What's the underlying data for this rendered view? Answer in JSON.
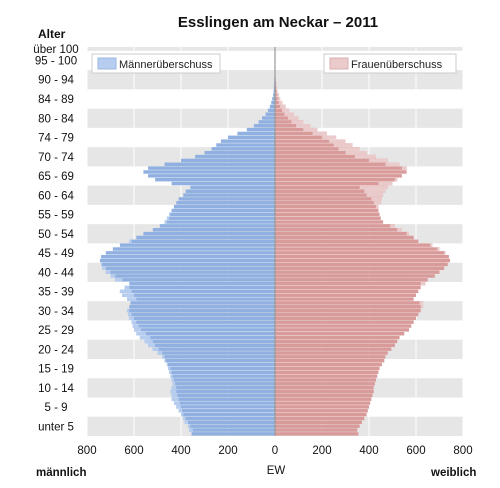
{
  "chart_data": {
    "type": "bar",
    "title": "Esslingen am Neckar – 2011",
    "age_axis_label": "Alter",
    "xlabel": "EW",
    "left_label": "männlich",
    "right_label": "weiblich",
    "xlim": [
      -800,
      800
    ],
    "x_ticks": [
      "800",
      "600",
      "400",
      "200",
      "0",
      "200",
      "400",
      "600",
      "800"
    ],
    "age_tick_labels": [
      "über 100",
      "95 - 100",
      "90 - 94",
      "84 - 89",
      "80 - 84",
      "74 - 79",
      "70 - 74",
      "65 - 69",
      "60 - 64",
      "55 - 59",
      "50 - 54",
      "45 - 49",
      "40 - 44",
      "35 - 39",
      "30 - 34",
      "25 - 29",
      "20 - 24",
      "15 - 19",
      "10 - 14",
      "5 - 9",
      "unter 5"
    ],
    "legend": {
      "male_surplus": "Männerüberschuss",
      "female_surplus": "Frauenüberschuss",
      "placement": "top"
    },
    "grid": true,
    "colors": {
      "male": "#8fb0e0",
      "female": "#d99a9a",
      "male_surplus": "#b7cdef",
      "female_surplus": "#eacaca",
      "band": "#e6e6e6",
      "axis_line": "#9a9a9a"
    },
    "ages": [
      0,
      1,
      2,
      3,
      4,
      5,
      6,
      7,
      8,
      9,
      10,
      11,
      12,
      13,
      14,
      15,
      16,
      17,
      18,
      19,
      20,
      21,
      22,
      23,
      24,
      25,
      26,
      27,
      28,
      29,
      30,
      31,
      32,
      33,
      34,
      35,
      36,
      37,
      38,
      39,
      40,
      41,
      42,
      43,
      44,
      45,
      46,
      47,
      48,
      49,
      50,
      51,
      52,
      53,
      54,
      55,
      56,
      57,
      58,
      59,
      60,
      61,
      62,
      63,
      64,
      65,
      66,
      67,
      68,
      69,
      70,
      71,
      72,
      73,
      74,
      75,
      76,
      77,
      78,
      79,
      80,
      81,
      82,
      83,
      84,
      85,
      86,
      87,
      88,
      89,
      90,
      91,
      92,
      93,
      94,
      95,
      96,
      97,
      98,
      99,
      100
    ],
    "male": [
      355,
      365,
      370,
      385,
      390,
      400,
      410,
      420,
      430,
      440,
      440,
      445,
      440,
      435,
      440,
      445,
      450,
      455,
      460,
      470,
      480,
      500,
      520,
      540,
      555,
      575,
      590,
      600,
      605,
      610,
      620,
      625,
      630,
      620,
      615,
      630,
      650,
      660,
      640,
      620,
      680,
      700,
      720,
      735,
      740,
      745,
      740,
      720,
      690,
      660,
      620,
      590,
      560,
      520,
      490,
      470,
      460,
      450,
      440,
      430,
      420,
      410,
      390,
      380,
      360,
      440,
      510,
      540,
      560,
      540,
      470,
      400,
      340,
      300,
      270,
      250,
      230,
      200,
      160,
      120,
      90,
      70,
      55,
      40,
      30,
      22,
      16,
      12,
      8,
      6,
      5,
      4,
      3,
      2,
      2,
      2,
      1,
      1,
      0,
      0,
      0
    ],
    "female": [
      355,
      350,
      360,
      370,
      380,
      390,
      395,
      400,
      405,
      410,
      415,
      420,
      420,
      425,
      430,
      435,
      440,
      445,
      455,
      465,
      470,
      480,
      495,
      510,
      520,
      530,
      550,
      570,
      580,
      590,
      600,
      610,
      620,
      630,
      630,
      590,
      600,
      610,
      620,
      640,
      650,
      680,
      700,
      720,
      735,
      745,
      740,
      725,
      700,
      670,
      610,
      590,
      570,
      540,
      510,
      460,
      450,
      445,
      440,
      440,
      450,
      455,
      460,
      470,
      480,
      500,
      520,
      540,
      560,
      560,
      530,
      480,
      430,
      390,
      360,
      330,
      300,
      260,
      220,
      180,
      150,
      120,
      100,
      80,
      60,
      45,
      32,
      22,
      16,
      10,
      7,
      5,
      3,
      2,
      2,
      2,
      1,
      1,
      0,
      0,
      0
    ]
  }
}
